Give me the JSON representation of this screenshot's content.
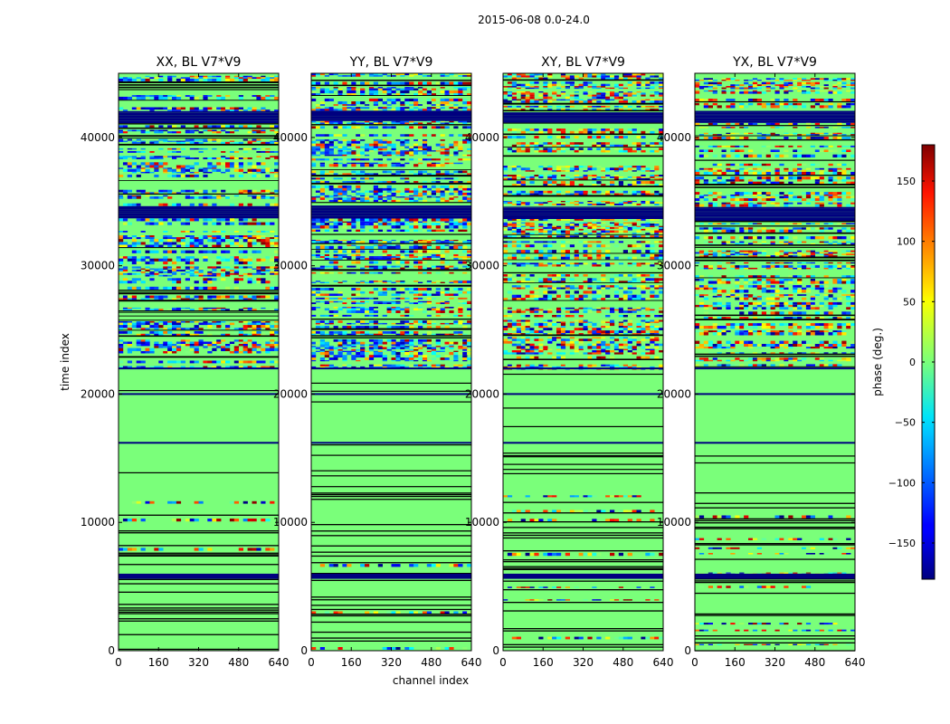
{
  "figure": {
    "suptitle": "2015-06-08 0.0-24.0"
  },
  "chart_data": {
    "type": "heatmap",
    "suptitle": "2015-06-08 0.0-24.0",
    "xlabel": "channel index",
    "ylabel": "time index",
    "xlim": [
      0,
      640
    ],
    "ylim": [
      0,
      45000
    ],
    "x_ticks": [
      0,
      160,
      320,
      480,
      640
    ],
    "y_ticks": [
      0,
      10000,
      20000,
      30000,
      40000
    ],
    "panels": [
      {
        "title": "XX, BL V7*V9"
      },
      {
        "title": "YY, BL V7*V9"
      },
      {
        "title": "XY, BL V7*V9"
      },
      {
        "title": "YX, BL V7*V9"
      }
    ],
    "colorbar": {
      "label": "phase (deg.)",
      "range": [
        -180,
        180
      ],
      "ticks": [
        -150,
        -100,
        -50,
        0,
        50,
        100,
        150
      ],
      "colormap": "jet"
    },
    "notes": "Phase of baseline V7*V9 visibilities vs channel and time; near-zero (green) wide bands around 10000-22000, dense noisy fringe structure above ~22000 with dark-blue flagged rows near 34000 and 41500."
  }
}
